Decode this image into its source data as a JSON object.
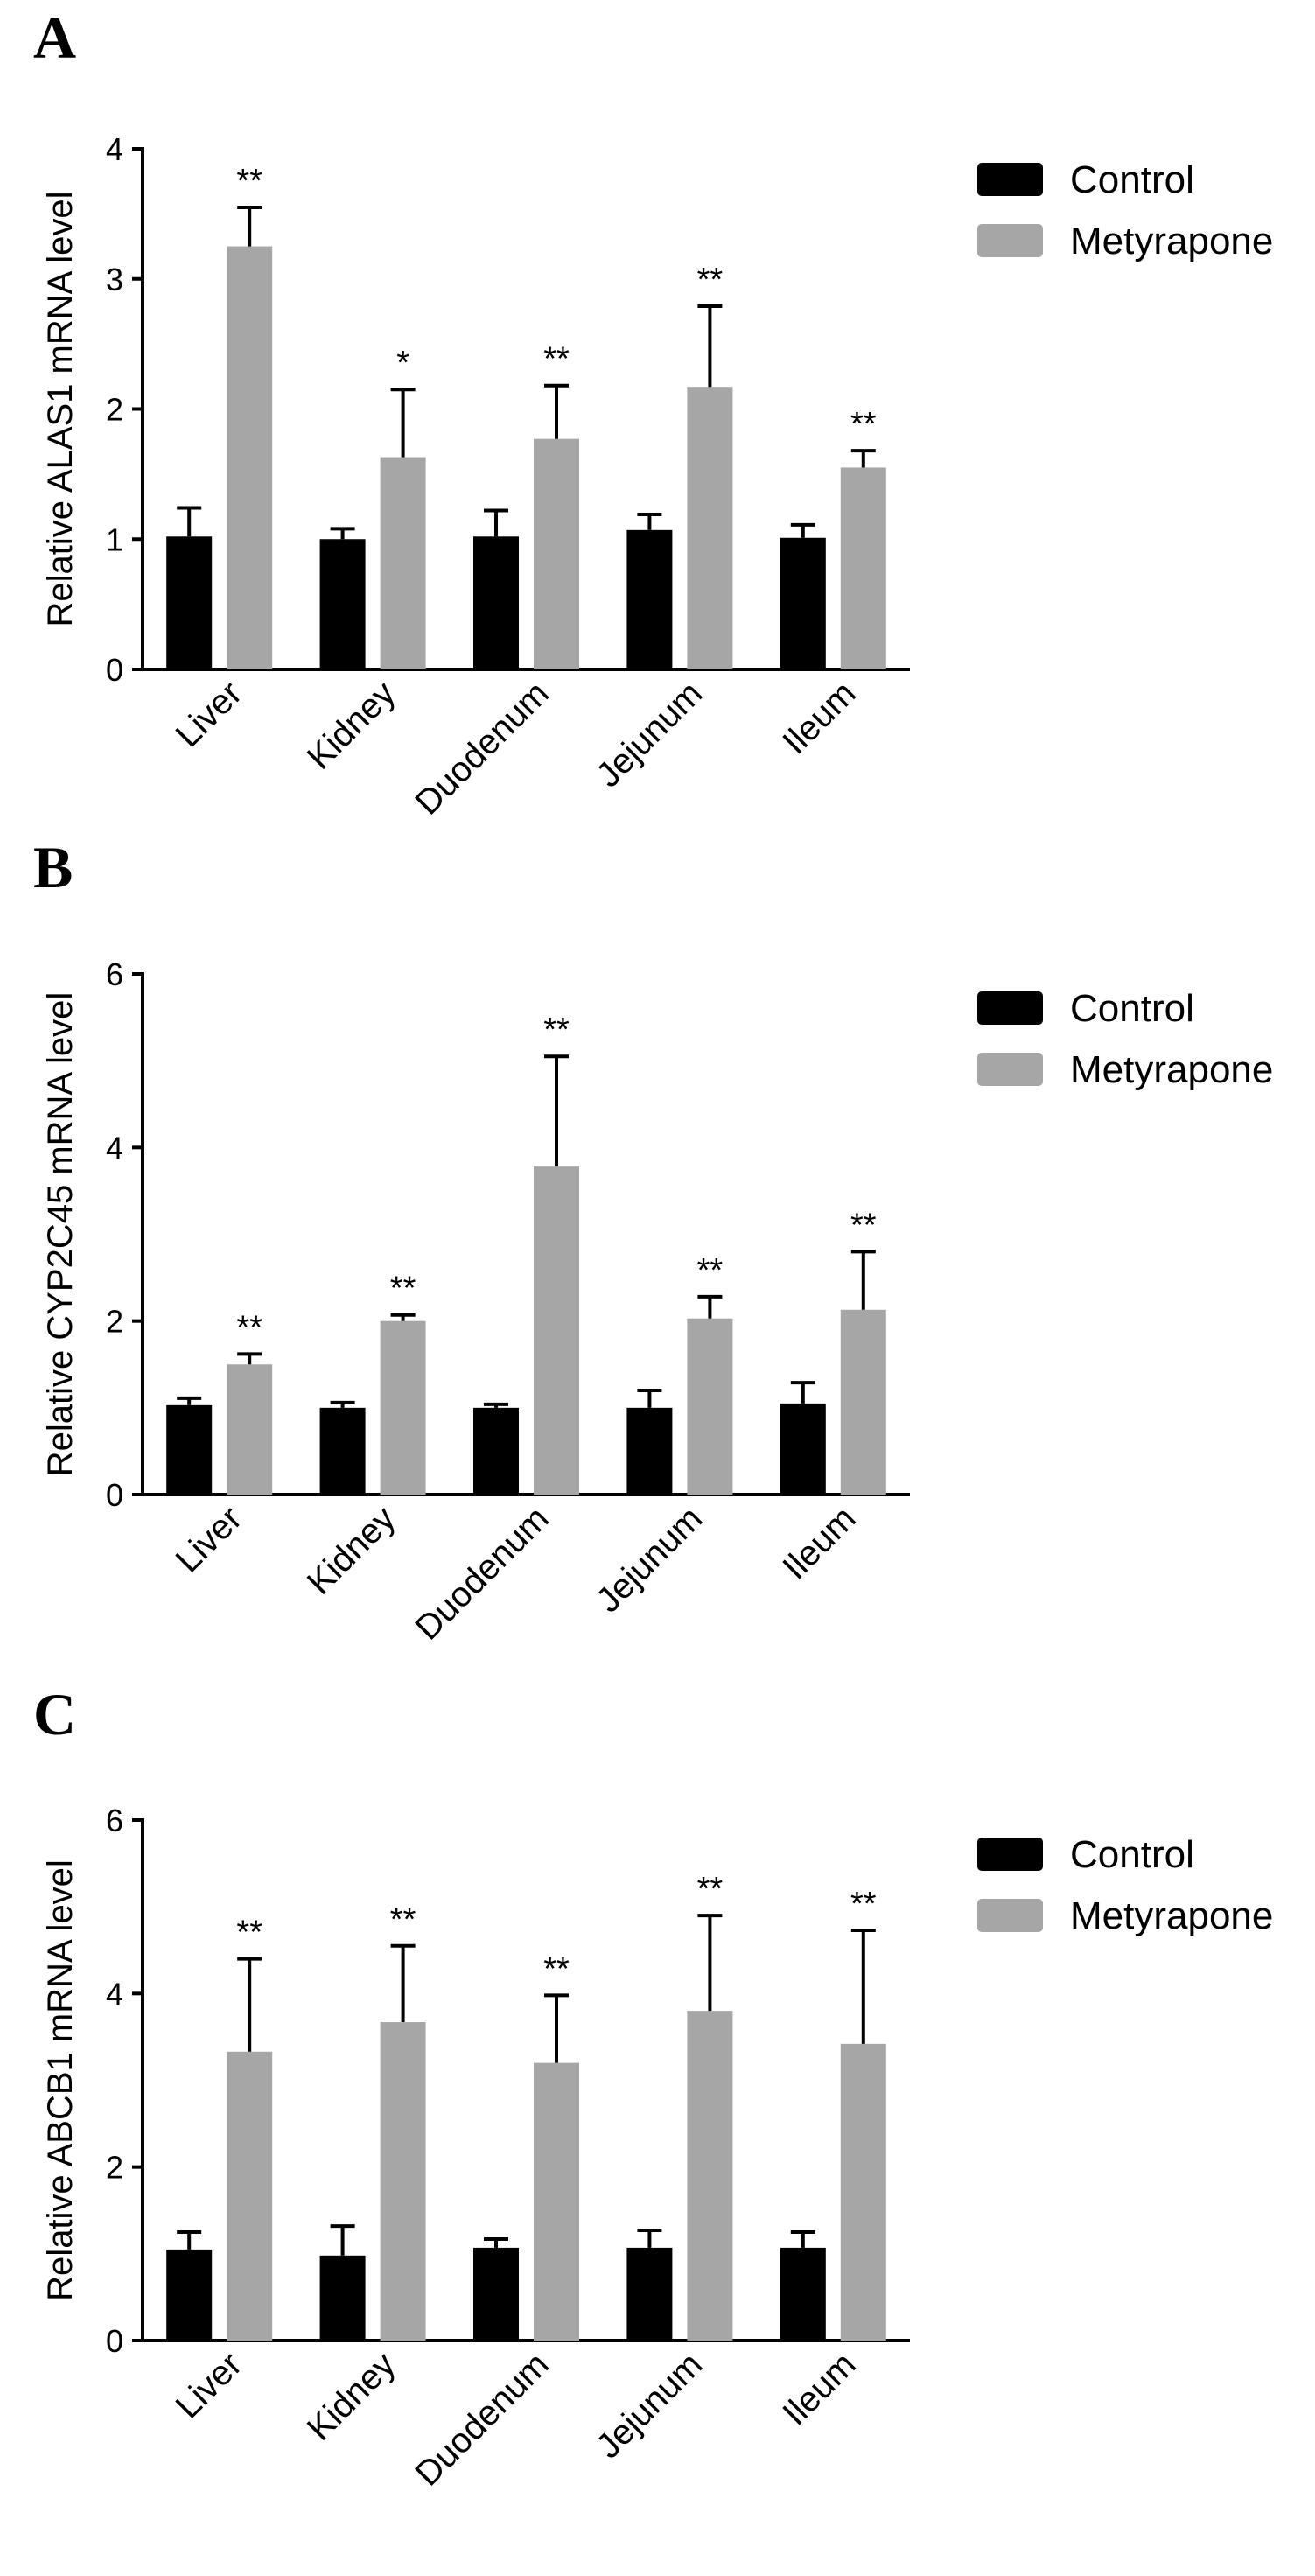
{
  "figure": {
    "panels": [
      "A",
      "B",
      "C"
    ]
  },
  "legend": {
    "items": [
      {
        "label": "Control",
        "color": "#000000"
      },
      {
        "label": "Metyrapone",
        "color": "#a6a6a6"
      }
    ]
  },
  "chart_data": [
    {
      "panel": "A",
      "type": "bar",
      "ylabel": "Relative ALAS1 mRNA level",
      "xlabel": "",
      "ylim": [
        0,
        4
      ],
      "yticks": [
        0,
        1,
        2,
        3,
        4
      ],
      "categories": [
        "Liver",
        "Kidney",
        "Duodenum",
        "Jejunum",
        "Ileum"
      ],
      "series": [
        {
          "name": "Control",
          "color": "#000000",
          "values": [
            1.02,
            1.0,
            1.02,
            1.07,
            1.01
          ],
          "errors": [
            0.22,
            0.08,
            0.2,
            0.12,
            0.1
          ]
        },
        {
          "name": "Metyrapone",
          "color": "#a6a6a6",
          "values": [
            3.25,
            1.63,
            1.77,
            2.17,
            1.55
          ],
          "errors": [
            0.3,
            0.52,
            0.41,
            0.62,
            0.13
          ]
        }
      ],
      "significance": [
        "**",
        "*",
        "**",
        "**",
        "**"
      ]
    },
    {
      "panel": "B",
      "type": "bar",
      "ylabel": "Relative CYP2C45 mRNA level",
      "xlabel": "",
      "ylim": [
        0,
        6
      ],
      "yticks": [
        0,
        2,
        4,
        6
      ],
      "categories": [
        "Liver",
        "Kidney",
        "Duodenum",
        "Jejunum",
        "Ileum"
      ],
      "series": [
        {
          "name": "Control",
          "color": "#000000",
          "values": [
            1.03,
            1.0,
            1.0,
            1.0,
            1.05
          ],
          "errors": [
            0.08,
            0.06,
            0.04,
            0.2,
            0.24
          ]
        },
        {
          "name": "Metyrapone",
          "color": "#a6a6a6",
          "values": [
            1.5,
            2.0,
            3.78,
            2.03,
            2.13
          ],
          "errors": [
            0.12,
            0.07,
            1.27,
            0.25,
            0.67
          ]
        }
      ],
      "significance": [
        "**",
        "**",
        "**",
        "**",
        "**"
      ]
    },
    {
      "panel": "C",
      "type": "bar",
      "ylabel": "Relative ABCB1 mRNA level",
      "xlabel": "",
      "ylim": [
        0,
        6
      ],
      "yticks": [
        0,
        2,
        4,
        6
      ],
      "categories": [
        "Liver",
        "Kidney",
        "Duodenum",
        "Jejunum",
        "Ileum"
      ],
      "series": [
        {
          "name": "Control",
          "color": "#000000",
          "values": [
            1.05,
            0.98,
            1.07,
            1.07,
            1.07
          ],
          "errors": [
            0.2,
            0.34,
            0.1,
            0.2,
            0.18
          ]
        },
        {
          "name": "Metyrapone",
          "color": "#a6a6a6",
          "values": [
            3.33,
            3.67,
            3.2,
            3.8,
            3.42
          ],
          "errors": [
            1.07,
            0.88,
            0.78,
            1.1,
            1.31
          ]
        }
      ],
      "significance": [
        "**",
        "**",
        "**",
        "**",
        "**"
      ]
    }
  ]
}
